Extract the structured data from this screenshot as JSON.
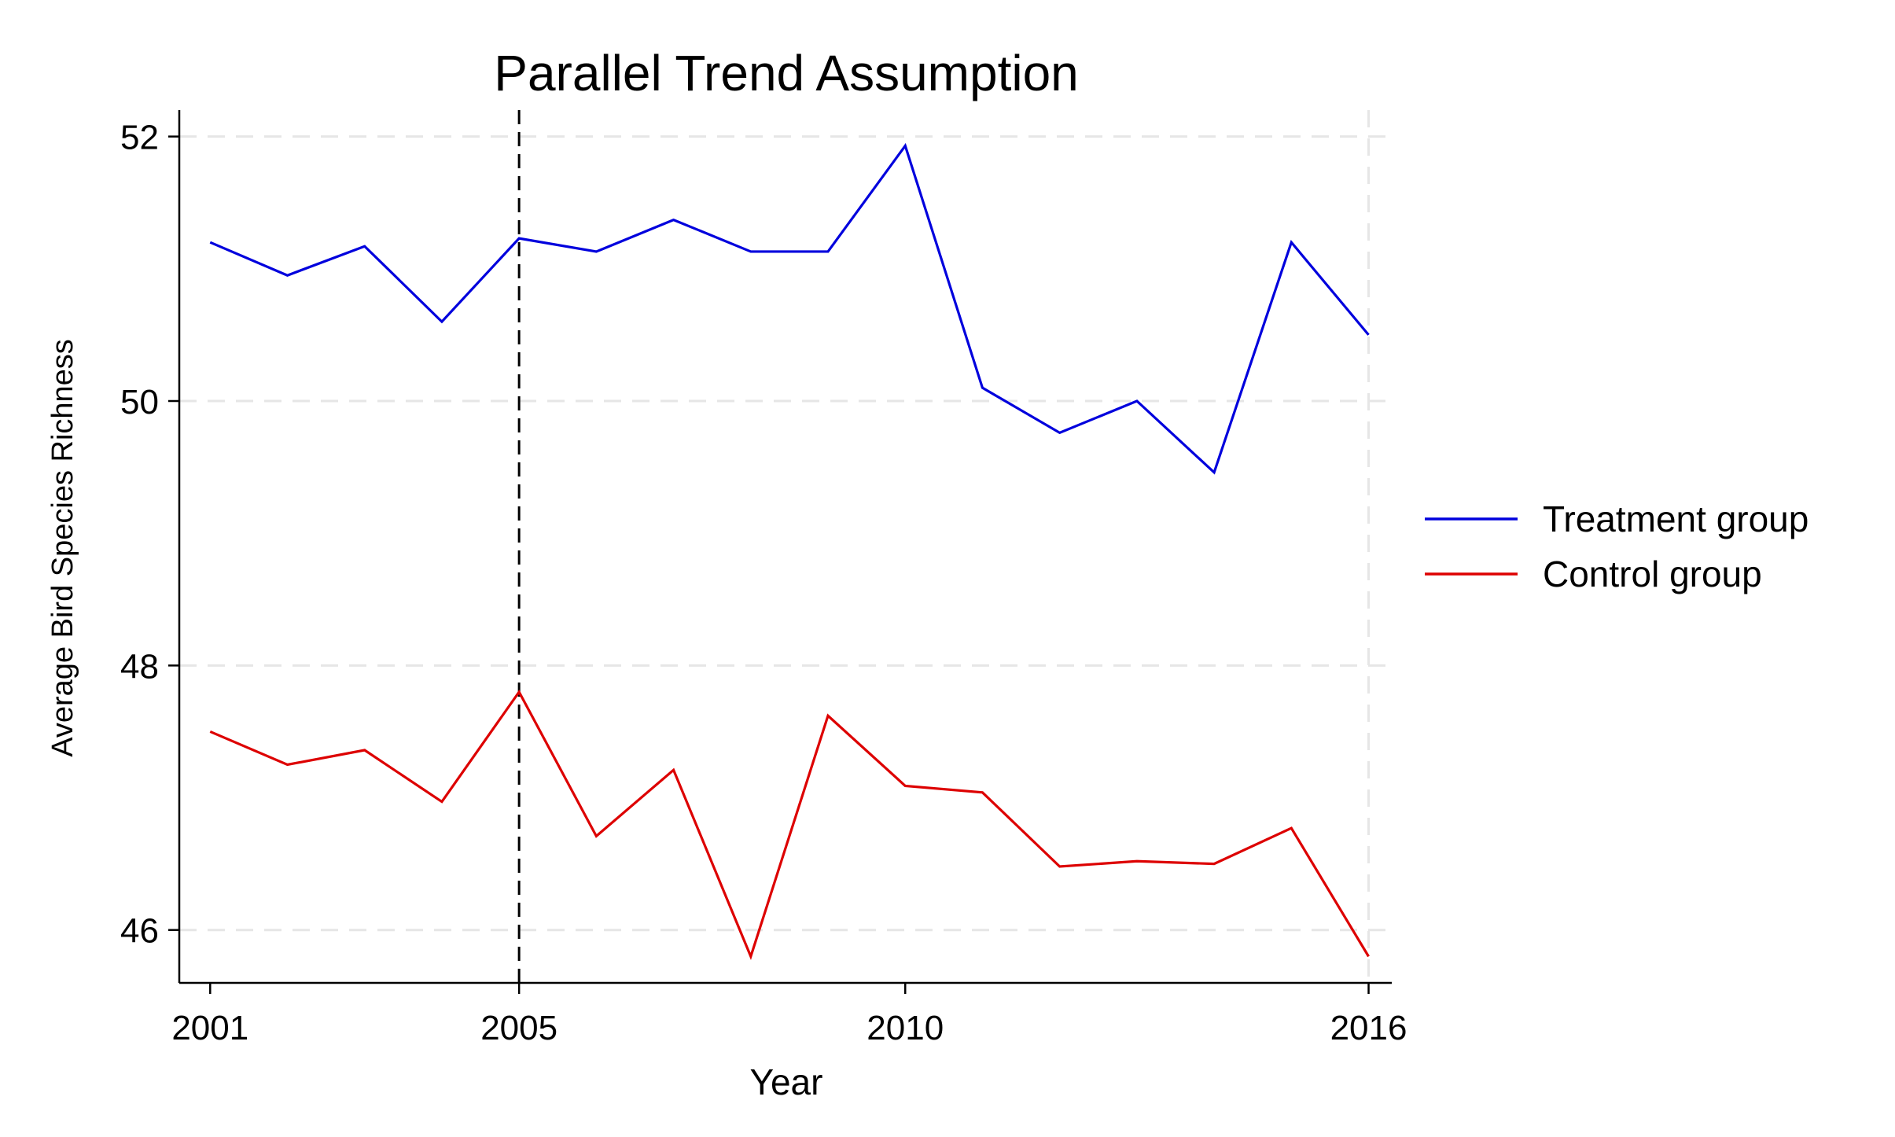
{
  "chart_data": {
    "type": "line",
    "title": "Parallel Trend Assumption",
    "xlabel": "Year",
    "ylabel": "Average Bird Species Richness",
    "x_ticks": [
      2001,
      2005,
      2010,
      2016
    ],
    "y_ticks": [
      46,
      48,
      50,
      52
    ],
    "xlim": [
      2000.6,
      2016.3
    ],
    "ylim": [
      45.6,
      52.2
    ],
    "grid": true,
    "legend_position": "right",
    "reference_line": {
      "x": 2005,
      "style": "dashed",
      "color": "#000000"
    },
    "x": [
      2001,
      2002,
      2003,
      2004,
      2005,
      2006,
      2007,
      2008,
      2009,
      2010,
      2011,
      2012,
      2013,
      2014,
      2015,
      2016
    ],
    "series": [
      {
        "name": "Treatment group",
        "color": "#0000dd",
        "values": [
          51.2,
          50.95,
          51.17,
          50.6,
          51.23,
          51.13,
          51.37,
          51.13,
          51.13,
          51.93,
          50.1,
          49.76,
          50.0,
          49.46,
          51.2,
          50.5
        ]
      },
      {
        "name": "Control group",
        "color": "#dd0000",
        "values": [
          47.5,
          47.25,
          47.36,
          46.97,
          47.8,
          46.71,
          47.21,
          45.8,
          47.62,
          47.09,
          47.04,
          46.48,
          46.52,
          46.5,
          46.77,
          45.8
        ]
      }
    ]
  }
}
